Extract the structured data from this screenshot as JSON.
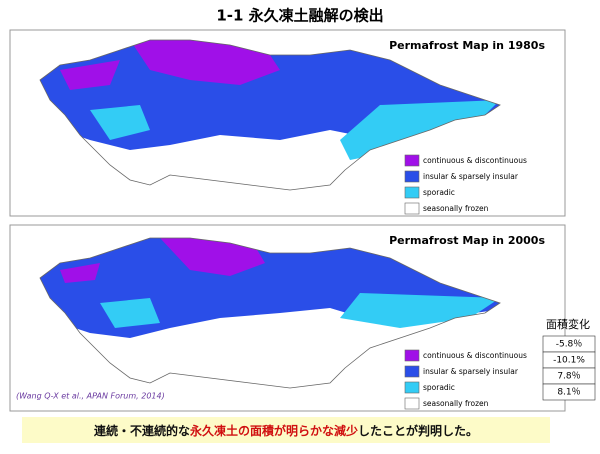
{
  "header": {
    "title": "1-1  永久凍土融解の検出"
  },
  "maps": [
    {
      "title": "Permafrost Map in 1980s",
      "legend": [
        "continuous & discontinuous",
        "insular & sparsely insular",
        "sporadic",
        "seasonally frozen"
      ]
    },
    {
      "title": "Permafrost Map in 2000s",
      "legend": [
        "continuous & discontinuous",
        "insular & sparsely insular",
        "sporadic",
        "seasonally frozen"
      ]
    }
  ],
  "citation": "(Wang Q-X et al., APAN Forum, 2014)",
  "table": {
    "header": "面積変化",
    "rows": [
      "-5.8％",
      "-10.1%",
      "7.8％",
      "8.1％"
    ]
  },
  "footer": {
    "segments": [
      "連続・不連続的な",
      "永久凍土の面積が明らかな減少",
      "したことが判明した。"
    ]
  }
}
